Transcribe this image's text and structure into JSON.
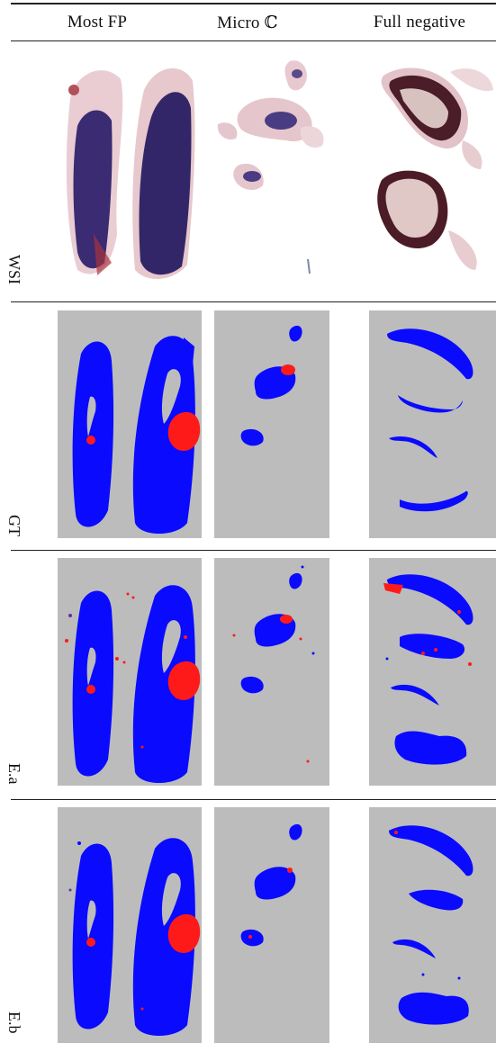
{
  "columns": [
    "Most FP",
    "Micro ℂ",
    "Full negative"
  ],
  "rows": [
    "WSI",
    "GT",
    "E.a",
    "E.b"
  ],
  "colors": {
    "background": "#bcbcbc",
    "tissue": "#0a0aff",
    "tumor": "#ff1a1a",
    "stain_dark": "#3b2a6e",
    "stain_light": "#e8c9cf"
  }
}
